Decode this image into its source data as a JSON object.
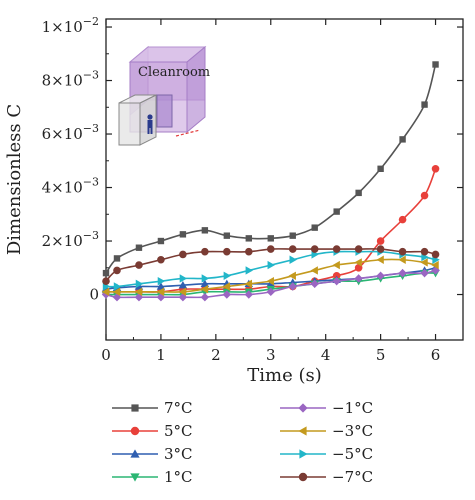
{
  "chart_data": {
    "type": "line",
    "xlabel": "Time (s)",
    "ylabel": "Dimensionless C",
    "xlim": [
      0,
      6.5
    ],
    "ylim": [
      -0.0017,
      0.0103
    ],
    "x_ticks": [
      0,
      1,
      2,
      3,
      4,
      5,
      6
    ],
    "x_tick_labels": [
      "0",
      "1",
      "2",
      "3",
      "4",
      "5",
      "6"
    ],
    "y_ticks": [
      0,
      0.002,
      0.004,
      0.006,
      0.008,
      0.01
    ],
    "y_tick_labels": [
      {
        "mant": "0",
        "exp": ""
      },
      {
        "mant": "2×10",
        "exp": "−3"
      },
      {
        "mant": "4×10",
        "exp": "−3"
      },
      {
        "mant": "6×10",
        "exp": "−3"
      },
      {
        "mant": "8×10",
        "exp": "−3"
      },
      {
        "mant": "1×10",
        "exp": "−2"
      }
    ],
    "grid": false,
    "legend_position": "bottom",
    "inset_label": "Cleanroom",
    "x": [
      0,
      0.2,
      0.6,
      1.0,
      1.4,
      1.8,
      2.2,
      2.6,
      3.0,
      3.4,
      3.8,
      4.2,
      4.6,
      5.0,
      5.4,
      5.8,
      6.0
    ],
    "series": [
      {
        "name": "7°C",
        "color": "#555555",
        "marker": "square",
        "values": [
          0.0008,
          0.00135,
          0.00175,
          0.002,
          0.00225,
          0.0024,
          0.0022,
          0.0021,
          0.0021,
          0.0022,
          0.0025,
          0.0031,
          0.0038,
          0.0047,
          0.0058,
          0.0071,
          0.0086
        ]
      },
      {
        "name": "5°C",
        "color": "#e8403a",
        "marker": "circle",
        "values": [
          0.0001,
          0.0001,
          0.0001,
          0.0001,
          0.0002,
          0.0002,
          0.0002,
          0.0002,
          0.0003,
          0.0003,
          0.0005,
          0.0007,
          0.001,
          0.002,
          0.0028,
          0.0037,
          0.0047
        ]
      },
      {
        "name": "3°C",
        "color": "#2f5fb0",
        "marker": "triangle-up",
        "values": [
          0.0002,
          0.00025,
          0.0003,
          0.0003,
          0.00035,
          0.0004,
          0.0004,
          0.0004,
          0.0004,
          0.00045,
          0.0005,
          0.00055,
          0.0006,
          0.0007,
          0.0008,
          0.0009,
          0.001
        ]
      },
      {
        "name": "1°C",
        "color": "#2bb673",
        "marker": "triangle-down",
        "values": [
          0.0,
          0.0,
          0.0,
          0.0,
          0.0,
          0.0001,
          0.0001,
          0.0001,
          0.0002,
          0.0003,
          0.0004,
          0.0005,
          0.0005,
          0.0006,
          0.0007,
          0.0008,
          0.0008
        ]
      },
      {
        "name": "−1°C",
        "color": "#9a66c2",
        "marker": "diamond",
        "values": [
          0.0,
          -0.0001,
          -0.0001,
          -0.0001,
          -0.0001,
          -0.0001,
          0.0,
          0.0,
          0.0001,
          0.0003,
          0.0004,
          0.0005,
          0.0006,
          0.0007,
          0.0008,
          0.0008,
          0.0009
        ]
      },
      {
        "name": "−3°C",
        "color": "#c49a1e",
        "marker": "triangle-left",
        "values": [
          0.0001,
          0.0001,
          0.0001,
          0.0001,
          0.0001,
          0.0002,
          0.0003,
          0.0004,
          0.0005,
          0.0007,
          0.0009,
          0.0011,
          0.0012,
          0.0013,
          0.0013,
          0.0012,
          0.0011
        ]
      },
      {
        "name": "−5°C",
        "color": "#22b6c9",
        "marker": "triangle-right",
        "values": [
          0.0003,
          0.0003,
          0.0004,
          0.0005,
          0.0006,
          0.0006,
          0.0007,
          0.0009,
          0.0011,
          0.0013,
          0.0015,
          0.0016,
          0.0016,
          0.0016,
          0.0015,
          0.0014,
          0.0013
        ]
      },
      {
        "name": "−7°C",
        "color": "#7a3b33",
        "marker": "circle",
        "values": [
          0.0005,
          0.0009,
          0.0011,
          0.0013,
          0.0015,
          0.0016,
          0.0016,
          0.0016,
          0.0017,
          0.0017,
          0.0017,
          0.0017,
          0.0017,
          0.0017,
          0.0016,
          0.0016,
          0.0015
        ]
      }
    ]
  }
}
